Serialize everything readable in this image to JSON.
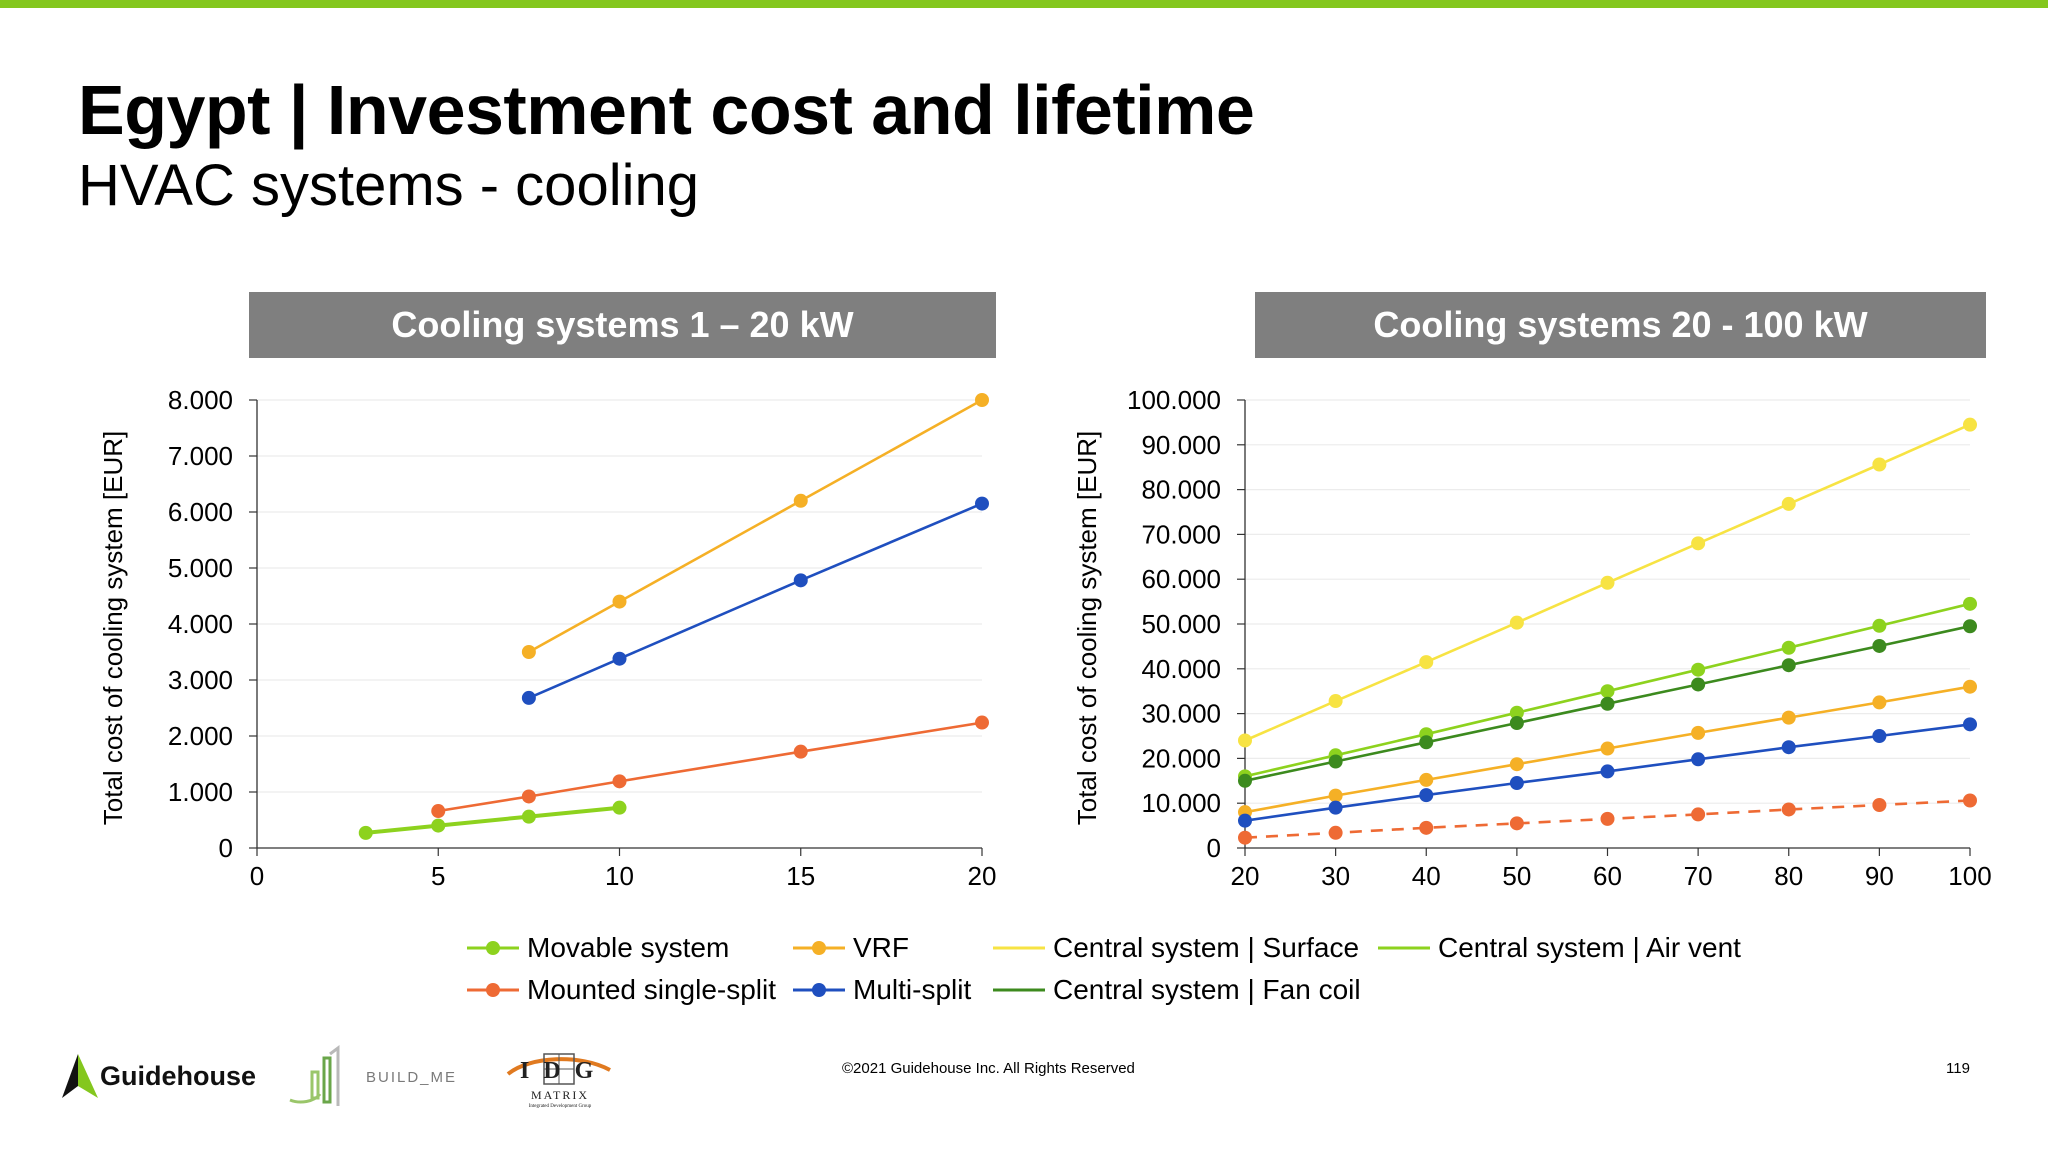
{
  "slide": {
    "title": "Egypt | Investment cost and lifetime",
    "subtitle": "HVAC systems - cooling",
    "footer_copyright": "©2021 Guidehouse Inc. All Rights Reserved",
    "page_number": "119",
    "accent_color": "#84c71e"
  },
  "logos": {
    "guidehouse": "Guidehouse",
    "build_me": "BUILD_ME",
    "idg_letters": "IDG",
    "idg_matrix": "MATRIX",
    "idg_tagline": "Integrated Development Group"
  },
  "legend": [
    {
      "label": "Movable system",
      "color": "#8dd21e",
      "marker": true,
      "dashed": false
    },
    {
      "label": "VRF",
      "color": "#f5b026",
      "marker": true,
      "dashed": false
    },
    {
      "label": "Central system | Surface",
      "color": "#f7e343",
      "marker": false,
      "dashed": false
    },
    {
      "label": "Central system | Air vent",
      "color": "#8dd21e",
      "marker": false,
      "dashed": false
    },
    {
      "label": "Mounted single-split",
      "color": "#ee6a34",
      "marker": true,
      "dashed": false
    },
    {
      "label": "Multi-split",
      "color": "#1f4fbf",
      "marker": true,
      "dashed": false
    },
    {
      "label": "Central system | Fan coil",
      "color": "#3c8a1e",
      "marker": false,
      "dashed": false
    }
  ],
  "chart_data": [
    {
      "type": "line",
      "title": "Cooling systems 1 – 20 kW",
      "ylabel": "Total cost of cooling system [EUR]",
      "xlabel": "",
      "xlim": [
        0,
        20
      ],
      "ylim": [
        0,
        8000
      ],
      "x_ticks": [
        "0",
        "5",
        "10",
        "15",
        "20"
      ],
      "x_tick_values": [
        0,
        5,
        10,
        15,
        20
      ],
      "y_ticks": [
        "0",
        "1.000",
        "2.000",
        "3.000",
        "4.000",
        "5.000",
        "6.000",
        "7.000",
        "8.000"
      ],
      "y_tick_values": [
        0,
        1000,
        2000,
        3000,
        4000,
        5000,
        6000,
        7000,
        8000
      ],
      "grid": true,
      "series": [
        {
          "name": "Movable system",
          "color": "#8dd21e",
          "dashed": false,
          "thick": true,
          "points": [
            [
              3,
              270
            ],
            [
              5,
              400
            ],
            [
              7.5,
              560
            ],
            [
              10,
              720
            ]
          ]
        },
        {
          "name": "Mounted single-split",
          "color": "#ee6a34",
          "dashed": false,
          "thick": false,
          "points": [
            [
              5,
              660
            ],
            [
              7.5,
              920
            ],
            [
              10,
              1190
            ],
            [
              15,
              1720
            ],
            [
              20,
              2240
            ]
          ]
        },
        {
          "name": "VRF",
          "color": "#f5b026",
          "dashed": false,
          "thick": false,
          "points": [
            [
              7.5,
              3500
            ],
            [
              10,
              4400
            ],
            [
              15,
              6200
            ],
            [
              20,
              8000
            ]
          ]
        },
        {
          "name": "Multi-split",
          "color": "#1f4fbf",
          "dashed": false,
          "thick": false,
          "points": [
            [
              7.5,
              2680
            ],
            [
              10,
              3380
            ],
            [
              15,
              4780
            ],
            [
              20,
              6150
            ]
          ]
        }
      ]
    },
    {
      "type": "line",
      "title": "Cooling systems 20 - 100 kW",
      "ylabel": "Total cost of cooling system [EUR]",
      "xlabel": "",
      "xlim": [
        20,
        100
      ],
      "ylim": [
        0,
        100000
      ],
      "x_ticks": [
        "20",
        "30",
        "40",
        "50",
        "60",
        "70",
        "80",
        "90",
        "100"
      ],
      "x_tick_values": [
        20,
        30,
        40,
        50,
        60,
        70,
        80,
        90,
        100
      ],
      "y_ticks": [
        "0",
        "10.000",
        "20.000",
        "30.000",
        "40.000",
        "50.000",
        "60.000",
        "70.000",
        "80.000",
        "90.000",
        "100.000"
      ],
      "y_tick_values": [
        0,
        10000,
        20000,
        30000,
        40000,
        50000,
        60000,
        70000,
        80000,
        90000,
        100000
      ],
      "grid": true,
      "series": [
        {
          "name": "Central system | Surface",
          "color": "#f7e343",
          "dashed": false,
          "thick": false,
          "points": [
            [
              20,
              24000
            ],
            [
              30,
              32800
            ],
            [
              40,
              41500
            ],
            [
              50,
              50300
            ],
            [
              60,
              59200
            ],
            [
              70,
              68000
            ],
            [
              80,
              76800
            ],
            [
              90,
              85600
            ],
            [
              100,
              94500
            ]
          ]
        },
        {
          "name": "Central system | Air vent",
          "color": "#8dd21e",
          "dashed": false,
          "thick": false,
          "points": [
            [
              20,
              16000
            ],
            [
              30,
              20700
            ],
            [
              40,
              25400
            ],
            [
              50,
              30200
            ],
            [
              60,
              35000
            ],
            [
              70,
              39800
            ],
            [
              80,
              44700
            ],
            [
              90,
              49600
            ],
            [
              100,
              54500
            ]
          ]
        },
        {
          "name": "Central system | Fan coil",
          "color": "#3c8a1e",
          "dashed": false,
          "thick": false,
          "points": [
            [
              20,
              15000
            ],
            [
              30,
              19300
            ],
            [
              40,
              23600
            ],
            [
              50,
              27900
            ],
            [
              60,
              32200
            ],
            [
              70,
              36500
            ],
            [
              80,
              40800
            ],
            [
              90,
              45100
            ],
            [
              100,
              49500
            ]
          ]
        },
        {
          "name": "VRF",
          "color": "#f5b026",
          "dashed": false,
          "thick": false,
          "points": [
            [
              20,
              8000
            ],
            [
              30,
              11700
            ],
            [
              40,
              15200
            ],
            [
              50,
              18700
            ],
            [
              60,
              22200
            ],
            [
              70,
              25700
            ],
            [
              80,
              29100
            ],
            [
              90,
              32500
            ],
            [
              100,
              36000
            ]
          ]
        },
        {
          "name": "Multi-split",
          "color": "#1f4fbf",
          "dashed": false,
          "thick": false,
          "points": [
            [
              20,
              6100
            ],
            [
              30,
              9000
            ],
            [
              40,
              11800
            ],
            [
              50,
              14500
            ],
            [
              60,
              17100
            ],
            [
              70,
              19800
            ],
            [
              80,
              22500
            ],
            [
              90,
              25000
            ],
            [
              100,
              27600
            ]
          ]
        },
        {
          "name": "Mounted single-split",
          "color": "#ee6a34",
          "dashed": true,
          "thick": false,
          "points": [
            [
              20,
              2300
            ],
            [
              30,
              3400
            ],
            [
              40,
              4500
            ],
            [
              50,
              5500
            ],
            [
              60,
              6500
            ],
            [
              70,
              7500
            ],
            [
              80,
              8600
            ],
            [
              90,
              9600
            ],
            [
              100,
              10600
            ]
          ]
        }
      ]
    }
  ]
}
